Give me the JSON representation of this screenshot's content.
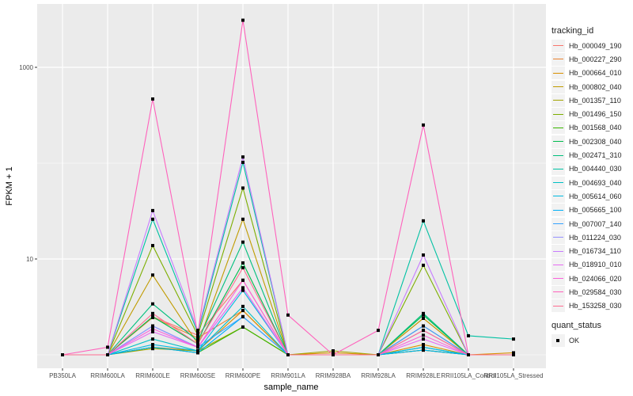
{
  "chart_data": {
    "type": "line",
    "xlabel": "sample_name",
    "ylabel": "FPKM + 1",
    "yscale": "log10",
    "ylim": [
      0.95,
      3600
    ],
    "yticks": [
      10,
      1000
    ],
    "ytick_labels": [
      "10",
      "1000"
    ],
    "categories": [
      "PB350LA",
      "RRIM600LA",
      "RRIM600LE",
      "RRIM600SE",
      "RRIM600PE",
      "RRIM901LA",
      "RRIM928BA",
      "RRIM928LA",
      "RRIM928LE",
      "RRII105LA_Control",
      "RRII105LA_Stressed"
    ],
    "legend_title": "tracking_id",
    "legend_position": "right",
    "series": [
      {
        "name": "Hb_000049_190",
        "color": "#F8766D",
        "values": [
          1,
          1,
          2.5,
          1.6,
          6.0,
          1,
          1,
          1,
          2.0,
          1,
          1
        ]
      },
      {
        "name": "Hb_000227_290",
        "color": "#EA8331",
        "values": [
          1,
          1,
          2.45,
          1.5,
          2.9,
          1,
          1,
          1,
          2.4,
          1,
          1
        ]
      },
      {
        "name": "Hb_000664_010",
        "color": "#D89000",
        "values": [
          1,
          1,
          1.2,
          1.1,
          2.9,
          1,
          1.05,
          1,
          1.28,
          1,
          1.05
        ]
      },
      {
        "name": "Hb_000802_040",
        "color": "#C09B00",
        "values": [
          1,
          1,
          6.8,
          1.3,
          26,
          1,
          1,
          1,
          2.4,
          1,
          1
        ]
      },
      {
        "name": "Hb_001357_110",
        "color": "#A3A500",
        "values": [
          1,
          1,
          1.16,
          1.1,
          1.95,
          1,
          1.1,
          1,
          1.12,
          1,
          1
        ]
      },
      {
        "name": "Hb_001496_150",
        "color": "#7CAE00",
        "values": [
          1,
          1,
          13.8,
          1.6,
          55,
          1,
          1,
          1,
          8.6,
          1,
          1
        ]
      },
      {
        "name": "Hb_001568_040",
        "color": "#39B600",
        "values": [
          1,
          1,
          1.2,
          1.05,
          1.95,
          1,
          1,
          1,
          1.12,
          1,
          1
        ]
      },
      {
        "name": "Hb_002308_040",
        "color": "#00BB4E",
        "values": [
          1,
          1,
          2.5,
          1.3,
          9.1,
          1,
          1,
          1,
          2.6,
          1,
          1
        ]
      },
      {
        "name": "Hb_002471_310",
        "color": "#00BF7D",
        "values": [
          1,
          1,
          3.4,
          1.4,
          15,
          1,
          1,
          1,
          2.7,
          1,
          1
        ]
      },
      {
        "name": "Hb_004440_030",
        "color": "#00C1A3",
        "values": [
          1,
          1,
          26,
          1.7,
          102,
          1,
          1,
          1,
          25,
          1.58,
          1.46
        ]
      },
      {
        "name": "Hb_004693_040",
        "color": "#00BFC4",
        "values": [
          1,
          1,
          1.46,
          1.1,
          3.2,
          1,
          1,
          1,
          1.2,
          1,
          1
        ]
      },
      {
        "name": "Hb_005614_060",
        "color": "#00BAE0",
        "values": [
          1,
          1,
          1.28,
          1.1,
          4.7,
          1,
          1,
          1,
          1.2,
          1,
          1
        ]
      },
      {
        "name": "Hb_005665_100",
        "color": "#00B0F6",
        "values": [
          1,
          1,
          1.2,
          1.05,
          2.5,
          1,
          1,
          1,
          1.12,
          1,
          1
        ]
      },
      {
        "name": "Hb_007007_140",
        "color": "#35A2FF",
        "values": [
          1,
          1,
          2.0,
          1.2,
          2.5,
          1,
          1,
          1,
          2.0,
          1,
          1
        ]
      },
      {
        "name": "Hb_011224_030",
        "color": "#9590FF",
        "values": [
          1,
          1,
          2.0,
          1.2,
          5.0,
          1,
          1,
          1,
          1.8,
          1,
          1
        ]
      },
      {
        "name": "Hb_016734_110",
        "color": "#C77CFF",
        "values": [
          1,
          1,
          32,
          1.8,
          116,
          1,
          1,
          1,
          11,
          1,
          1
        ]
      },
      {
        "name": "Hb_018910_010",
        "color": "#E76BF3",
        "values": [
          1,
          1,
          1.74,
          1.2,
          5.0,
          1,
          1,
          1,
          1.46,
          1,
          1
        ]
      },
      {
        "name": "Hb_024066_020",
        "color": "#FA62DB",
        "values": [
          1,
          1,
          1.87,
          1.2,
          6.0,
          1,
          1,
          1,
          1.6,
          1,
          1
        ]
      },
      {
        "name": "Hb_029584_030",
        "color": "#FF62BC",
        "values": [
          1,
          1.2,
          467,
          1.64,
          3100,
          2.6,
          1,
          1.8,
          250,
          1,
          1
        ]
      },
      {
        "name": "Hb_153258_030",
        "color": "#FF6C91",
        "values": [
          1,
          1,
          2.7,
          1.3,
          8.1,
          1,
          1,
          1,
          1.8,
          1,
          1
        ]
      }
    ],
    "shape_legend_title": "quant_status",
    "shape_legend_items": [
      "OK"
    ]
  }
}
